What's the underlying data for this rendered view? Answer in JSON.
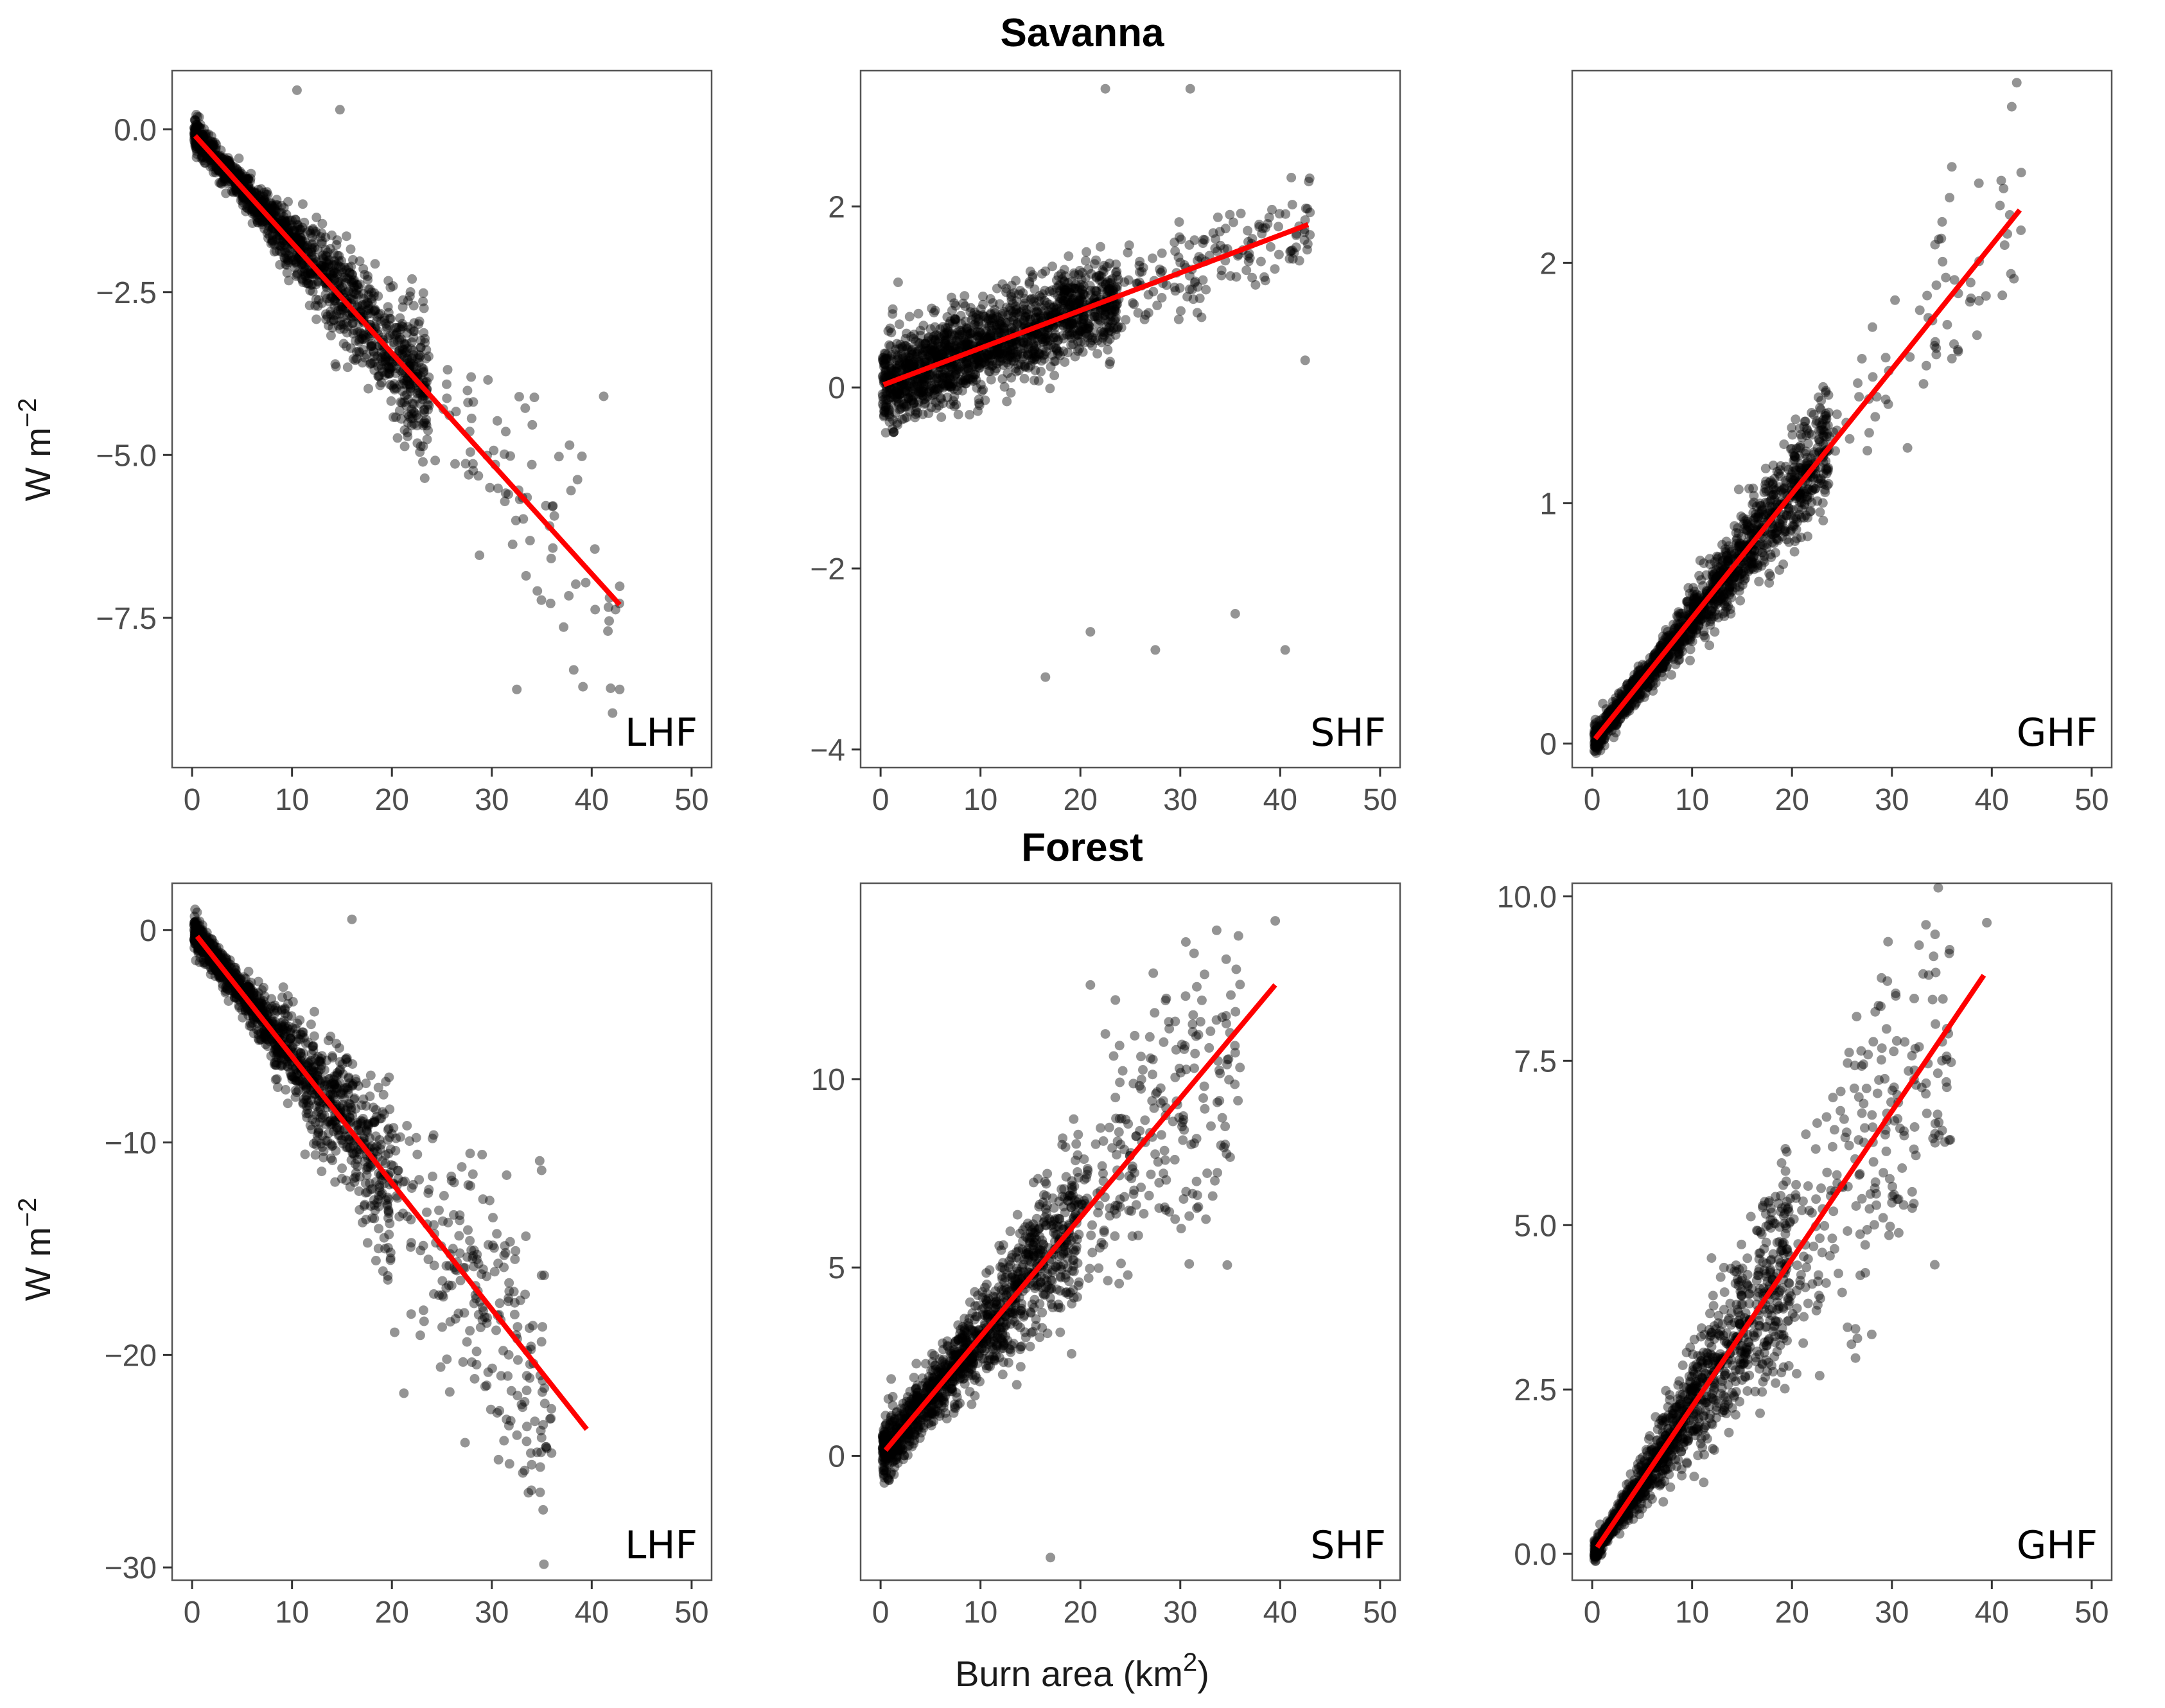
{
  "figure": {
    "rows": [
      {
        "title": "Savanna",
        "ylabel": "W m",
        "ylabel_sup": "−2"
      },
      {
        "title": "Forest",
        "ylabel": "W m",
        "ylabel_sup": "−2"
      }
    ],
    "xlabel": "Burn area (km",
    "xlabel_sup": "2",
    "xlabel_tail": ")"
  },
  "chart_data": [
    {
      "type": "scatter",
      "row": "Savanna",
      "tag": "LHF",
      "xlim": [
        -2,
        52
      ],
      "ylim": [
        -9.8,
        0.9
      ],
      "xticks": [
        0,
        10,
        20,
        30,
        40,
        50
      ],
      "xtick_labels": [
        "0",
        "10",
        "20",
        "30",
        "40",
        "50"
      ],
      "yticks": [
        0,
        -2.5,
        -5,
        -7.5
      ],
      "ytick_labels": [
        "0.0",
        "−2.5",
        "−5.0",
        "−7.5"
      ],
      "fit": {
        "x": [
          0.3,
          42.8
        ],
        "y": [
          -0.1,
          -7.3
        ]
      },
      "cloud": {
        "n": 1500,
        "xmax": 43,
        "scale": 0.85,
        "spread": 0.065,
        "min_sd": 0.12,
        "x_shape": 0.85
      },
      "outliers": [
        [
          10.5,
          0.6
        ],
        [
          14.8,
          0.3
        ],
        [
          41.2,
          -4.1
        ],
        [
          42.8,
          -8.6
        ],
        [
          32.5,
          -8.6
        ],
        [
          38.2,
          -8.3
        ]
      ]
    },
    {
      "type": "scatter",
      "row": "Savanna",
      "tag": "SHF",
      "xlim": [
        -2,
        52
      ],
      "ylim": [
        -4.2,
        3.5
      ],
      "xticks": [
        0,
        10,
        20,
        30,
        40,
        50
      ],
      "xtick_labels": [
        "0",
        "10",
        "20",
        "30",
        "40",
        "50"
      ],
      "yticks": [
        2,
        0,
        -2,
        -4
      ],
      "ytick_labels": [
        "2",
        "0",
        "−2",
        "−4"
      ],
      "fit": {
        "x": [
          0.3,
          42.8
        ],
        "y": [
          0.03,
          1.8
        ]
      },
      "cloud": {
        "n": 1700,
        "xmax": 43,
        "scale": 0.8,
        "spread": 0.05,
        "min_sd": 0.25,
        "x_shape": 0.9
      },
      "outliers": [
        [
          22.5,
          3.3
        ],
        [
          31.0,
          3.3
        ],
        [
          16.5,
          -3.2
        ],
        [
          40.5,
          -2.9
        ],
        [
          42.5,
          0.3
        ],
        [
          35.5,
          -2.5
        ],
        [
          27.5,
          -2.9
        ],
        [
          21.0,
          -2.7
        ]
      ]
    },
    {
      "type": "scatter",
      "row": "Savanna",
      "tag": "GHF",
      "xlim": [
        -2,
        52
      ],
      "ylim": [
        -0.1,
        2.8
      ],
      "xticks": [
        0,
        10,
        20,
        30,
        40,
        50
      ],
      "xtick_labels": [
        "0",
        "10",
        "20",
        "30",
        "40",
        "50"
      ],
      "yticks": [
        2,
        1,
        0
      ],
      "ytick_labels": [
        "2",
        "1",
        "0"
      ],
      "fit": {
        "x": [
          0.3,
          42.8
        ],
        "y": [
          0.02,
          2.22
        ]
      },
      "cloud": {
        "n": 1700,
        "xmax": 43,
        "scale": 0.9,
        "spread": 0.05,
        "min_sd": 0.03,
        "x_shape": 0.85
      },
      "outliers": [
        [
          42.5,
          2.75
        ],
        [
          42.0,
          2.65
        ],
        [
          41.8,
          2.2
        ],
        [
          36.0,
          2.4
        ]
      ]
    },
    {
      "type": "scatter",
      "row": "Forest",
      "tag": "LHF",
      "xlim": [
        -2,
        52
      ],
      "ylim": [
        -30.6,
        2.2
      ],
      "xticks": [
        0,
        10,
        20,
        30,
        40,
        50
      ],
      "xtick_labels": [
        "0",
        "10",
        "20",
        "30",
        "40",
        "50"
      ],
      "yticks": [
        0,
        -10,
        -20,
        -30
      ],
      "ytick_labels": [
        "0",
        "−10",
        "−20",
        "−30"
      ],
      "fit": {
        "x": [
          0.5,
          39.5
        ],
        "y": [
          -0.3,
          -23.5
        ]
      },
      "cloud": {
        "n": 1500,
        "xmax": 36,
        "scale": 0.55,
        "spread": 0.08,
        "min_sd": 0.4,
        "x_shape": 0.75
      },
      "outliers": [
        [
          35.5,
          -24.4
        ],
        [
          21.2,
          -21.8
        ],
        [
          25.5,
          -20.2
        ],
        [
          29.5,
          -18.5
        ],
        [
          30.5,
          -14.3
        ],
        [
          16.0,
          0.5
        ]
      ]
    },
    {
      "type": "scatter",
      "row": "Forest",
      "tag": "SHF",
      "xlim": [
        -2,
        52
      ],
      "ylim": [
        -3.3,
        15.2
      ],
      "xticks": [
        0,
        10,
        20,
        30,
        40,
        50
      ],
      "xtick_labels": [
        "0",
        "10",
        "20",
        "30",
        "40",
        "50"
      ],
      "yticks": [
        10,
        5,
        0
      ],
      "ytick_labels": [
        "10",
        "5",
        "0"
      ],
      "fit": {
        "x": [
          0.5,
          39.5
        ],
        "y": [
          0.15,
          12.5
        ]
      },
      "cloud": {
        "n": 1500,
        "xmax": 36,
        "scale": 0.6,
        "spread": 0.09,
        "min_sd": 0.4,
        "x_shape": 0.8
      },
      "outliers": [
        [
          39.5,
          14.2
        ],
        [
          21.0,
          12.5
        ],
        [
          23.5,
          12.1
        ],
        [
          35.5,
          10.7
        ],
        [
          17.0,
          -2.7
        ],
        [
          22.5,
          11.2
        ]
      ]
    },
    {
      "type": "scatter",
      "row": "Forest",
      "tag": "GHF",
      "xlim": [
        -2,
        52
      ],
      "ylim": [
        -0.4,
        10.2
      ],
      "xticks": [
        0,
        10,
        20,
        30,
        40,
        50
      ],
      "xtick_labels": [
        "0",
        "10",
        "20",
        "30",
        "40",
        "50"
      ],
      "yticks": [
        10,
        7.5,
        5,
        2.5,
        0
      ],
      "ytick_labels": [
        "10.0",
        "7.5",
        "5.0",
        "2.5",
        "0.0"
      ],
      "fit": {
        "x": [
          0.5,
          39.2
        ],
        "y": [
          0.1,
          8.8
        ]
      },
      "cloud": {
        "n": 1500,
        "xmax": 36,
        "scale": 0.6,
        "spread": 0.09,
        "min_sd": 0.08,
        "x_shape": 0.8
      },
      "outliers": [
        [
          39.5,
          9.6
        ],
        [
          29.5,
          6.7
        ],
        [
          27.0,
          5.4
        ],
        [
          33.5,
          6.7
        ]
      ]
    }
  ]
}
